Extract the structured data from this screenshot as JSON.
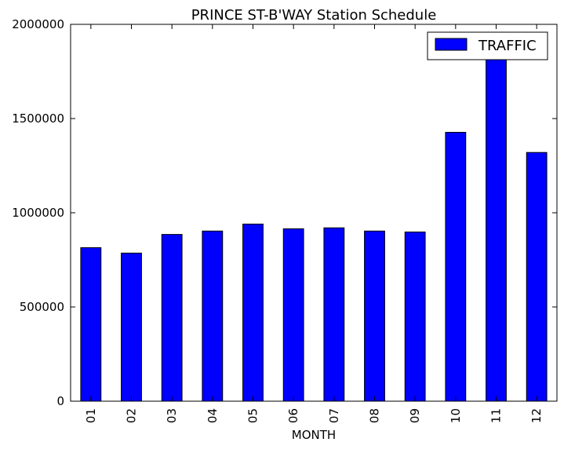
{
  "chart_data": {
    "type": "bar",
    "title": "PRINCE ST-B'WAY Station Schedule",
    "xlabel": "MONTH",
    "ylabel": "",
    "categories": [
      "01",
      "02",
      "03",
      "04",
      "05",
      "06",
      "07",
      "08",
      "09",
      "10",
      "11",
      "12"
    ],
    "series": [
      {
        "name": "TRAFFIC",
        "values": [
          815000,
          786000,
          885000,
          903000,
          940000,
          915000,
          920000,
          903000,
          898000,
          1427000,
          1822000,
          1320000
        ],
        "color": "#0000ff"
      }
    ],
    "ylim": [
      0,
      2000000
    ],
    "yticks": [
      "0",
      "500000",
      "1000000",
      "1500000",
      "2000000"
    ],
    "ytick_values": [
      0,
      500000,
      1000000,
      1500000,
      2000000
    ],
    "grid": false,
    "legend_position": "top-right",
    "xtick_rotation": "vertical"
  }
}
